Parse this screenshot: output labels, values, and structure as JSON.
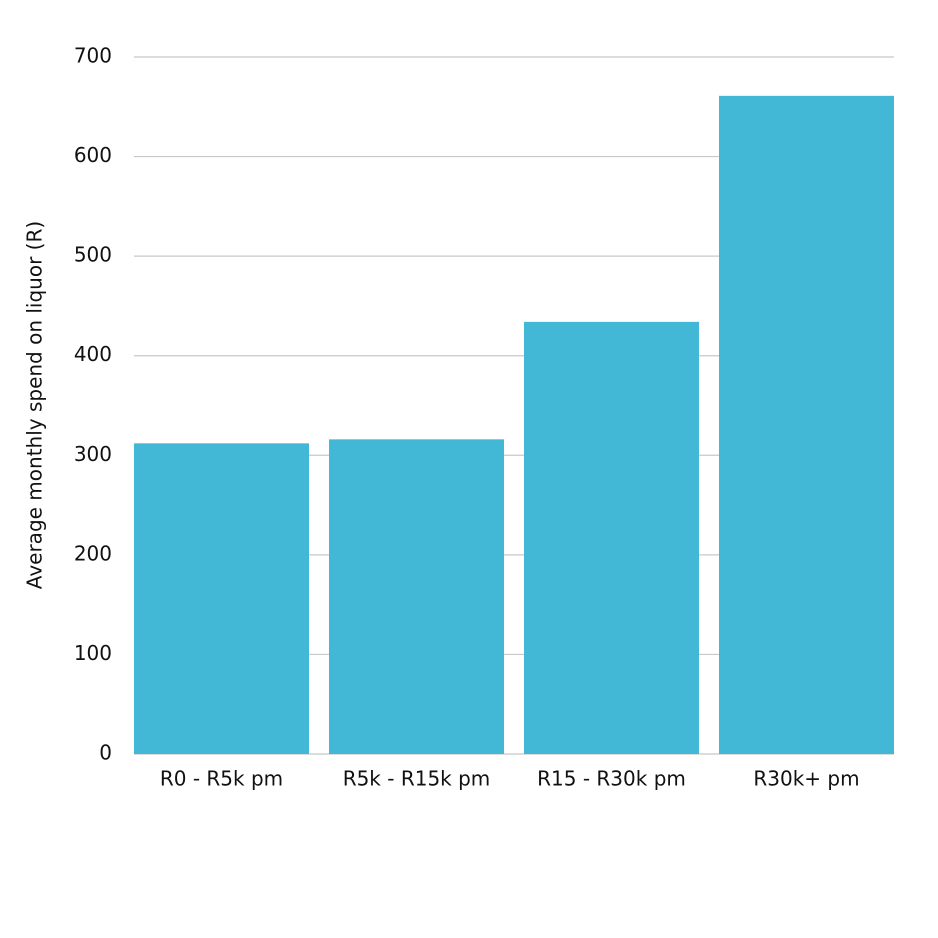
{
  "chart_data": {
    "type": "bar",
    "y_label": "Average monthly spend on liquor (R)",
    "categories": [
      "R0 - R5k pm",
      "R5k - R15k pm",
      "R15 - R30k pm",
      "R30k+ pm"
    ],
    "values": [
      312,
      316,
      434,
      661
    ],
    "color": "#42b7d6",
    "ylim": [
      0,
      700
    ],
    "yticks": [
      0,
      100,
      200,
      300,
      400,
      500,
      600,
      700
    ],
    "grid": true
  }
}
